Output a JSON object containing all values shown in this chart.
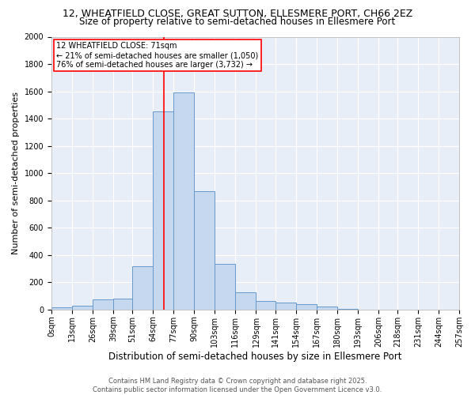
{
  "title1": "12, WHEATFIELD CLOSE, GREAT SUTTON, ELLESMERE PORT, CH66 2EZ",
  "title2": "Size of property relative to semi-detached houses in Ellesmere Port",
  "xlabel": "Distribution of semi-detached houses by size in Ellesmere Port",
  "ylabel": "Number of semi-detached properties",
  "bin_edges": [
    0,
    13,
    26,
    39,
    51,
    64,
    77,
    90,
    103,
    116,
    129,
    141,
    154,
    167,
    180,
    193,
    206,
    218,
    231,
    244,
    257
  ],
  "bin_labels": [
    "0sqm",
    "13sqm",
    "26sqm",
    "39sqm",
    "51sqm",
    "64sqm",
    "77sqm",
    "90sqm",
    "103sqm",
    "116sqm",
    "129sqm",
    "141sqm",
    "154sqm",
    "167sqm",
    "180sqm",
    "193sqm",
    "206sqm",
    "218sqm",
    "231sqm",
    "244sqm",
    "257sqm"
  ],
  "bar_heights": [
    15,
    30,
    75,
    80,
    315,
    1450,
    1590,
    865,
    335,
    125,
    60,
    50,
    40,
    20,
    5,
    0,
    0,
    0,
    0,
    0
  ],
  "bar_color": "#c5d8f0",
  "bar_edge_color": "#6699cc",
  "red_line_x": 71,
  "annotation_text": "12 WHEATFIELD CLOSE: 71sqm\n← 21% of semi-detached houses are smaller (1,050)\n76% of semi-detached houses are larger (3,732) →",
  "annotation_box_color": "white",
  "annotation_border_color": "red",
  "ylim": [
    0,
    2000
  ],
  "yticks": [
    0,
    200,
    400,
    600,
    800,
    1000,
    1200,
    1400,
    1600,
    1800,
    2000
  ],
  "background_color": "#e8eef8",
  "grid_color": "white",
  "footer_text": "Contains HM Land Registry data © Crown copyright and database right 2025.\nContains public sector information licensed under the Open Government Licence v3.0.",
  "title1_fontsize": 9,
  "title2_fontsize": 8.5,
  "xlabel_fontsize": 8.5,
  "ylabel_fontsize": 8,
  "tick_fontsize": 7,
  "annotation_fontsize": 7,
  "footer_fontsize": 6
}
